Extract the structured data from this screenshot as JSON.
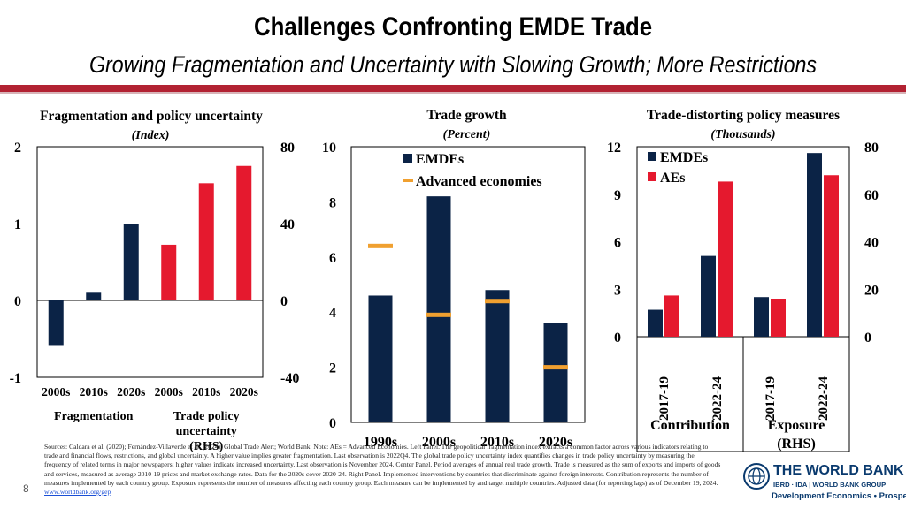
{
  "slide": {
    "title": "Challenges Confronting EMDE Trade",
    "subtitle": "Growing Fragmentation and Uncertainty with Slowing Growth; More Restrictions",
    "page_number": "8",
    "sources_text": "Sources: Caldara et al. (2020); Fernández-Villaverde et al. (2024); Global Trade Alert; World Bank. Note: AEs = Advanced Economies. Left Panel. The geopolitical fragmentation index extracts a common factor across various indicators relating to trade and financial flows, restrictions, and global uncertainty. A higher value implies greater fragmentation. Last observation is 2022Q4. The global trade policy uncertainty index quantifies changes in trade policy uncertainty by measuring the frequency of related terms in major newspapers; higher values indicate increased uncertainty. Last observation is November 2024. Center Panel. Period averages of annual real trade growth. Trade is measured as the sum of exports and imports of goods and services, measured as average 2010-19 prices and market exchange rates. Data for the 2020s cover 2020-24. Right Panel. Implemented interventions by countries that discriminate against foreign interests. Contribution represents the number of measures implemented by each country group. Exposure represents the number of measures affecting each country group. Each measure can be implemented by and target multiple countries. Adjusted data (for reporting lags) as of December 19, 2024.",
    "sources_link": "www.worldbank.org/gep",
    "logo": {
      "name": "THE WORLD BANK",
      "sub": "IBRD · IDA | WORLD BANK GROUP",
      "dept": "Development Economics • Prospects"
    }
  },
  "colors": {
    "navy": "#0b2346",
    "red": "#e5192e",
    "orange": "#f0a030",
    "accent_red": "#b22232"
  },
  "chart_data": [
    {
      "type": "bar",
      "title": "Fragmentation and policy uncertainty",
      "unit": "(Index)",
      "ylim": [
        -1,
        2
      ],
      "yticks": [
        "-1",
        "0",
        "1",
        "2"
      ],
      "y2lim": [
        -40,
        80
      ],
      "y2ticks": [
        "-40",
        "0",
        "40",
        "80"
      ],
      "categories": [
        "2000s",
        "2010s",
        "2020s",
        "2000s",
        "2010s",
        "2020s"
      ],
      "groups": [
        {
          "label": "Fragmentation",
          "axis": "left",
          "color": "#0b2346",
          "values": [
            -0.58,
            0.1,
            1.0
          ]
        },
        {
          "label": "Trade policy uncertainty (RHS)",
          "axis": "right",
          "color": "#e5192e",
          "values": [
            29,
            61,
            70
          ]
        }
      ]
    },
    {
      "type": "bar",
      "title": "Trade growth",
      "unit": "(Percent)",
      "ylim": [
        0,
        10
      ],
      "yticks": [
        "0",
        "2",
        "4",
        "6",
        "8",
        "10"
      ],
      "categories": [
        "1990s",
        "2000s",
        "2010s",
        "2020s"
      ],
      "series": [
        {
          "name": "EMDEs",
          "kind": "bar",
          "color": "#0b2346",
          "values": [
            4.6,
            8.2,
            4.8,
            3.6
          ]
        },
        {
          "name": "Advanced economies",
          "kind": "marker",
          "color": "#f0a030",
          "values": [
            6.4,
            3.9,
            4.4,
            2.0
          ]
        }
      ]
    },
    {
      "type": "bar",
      "title": "Trade-distorting policy measures",
      "unit": "(Thousands)",
      "ylim": [
        0,
        12
      ],
      "yticks": [
        "0",
        "3",
        "6",
        "9",
        "12"
      ],
      "y2lim": [
        0,
        80
      ],
      "y2ticks": [
        "0",
        "20",
        "40",
        "60",
        "80"
      ],
      "categories": [
        "2017-19",
        "2022-24",
        "2017-19",
        "2022-24"
      ],
      "group_labels": [
        "Contribution",
        "Exposure (RHS)"
      ],
      "series": [
        {
          "name": "EMDEs",
          "color": "#0b2346",
          "values": [
            1.7,
            5.1,
            2.5,
            11.6
          ]
        },
        {
          "name": "AEs",
          "color": "#e5192e",
          "values": [
            2.6,
            9.8,
            2.4,
            10.2
          ]
        }
      ]
    }
  ]
}
